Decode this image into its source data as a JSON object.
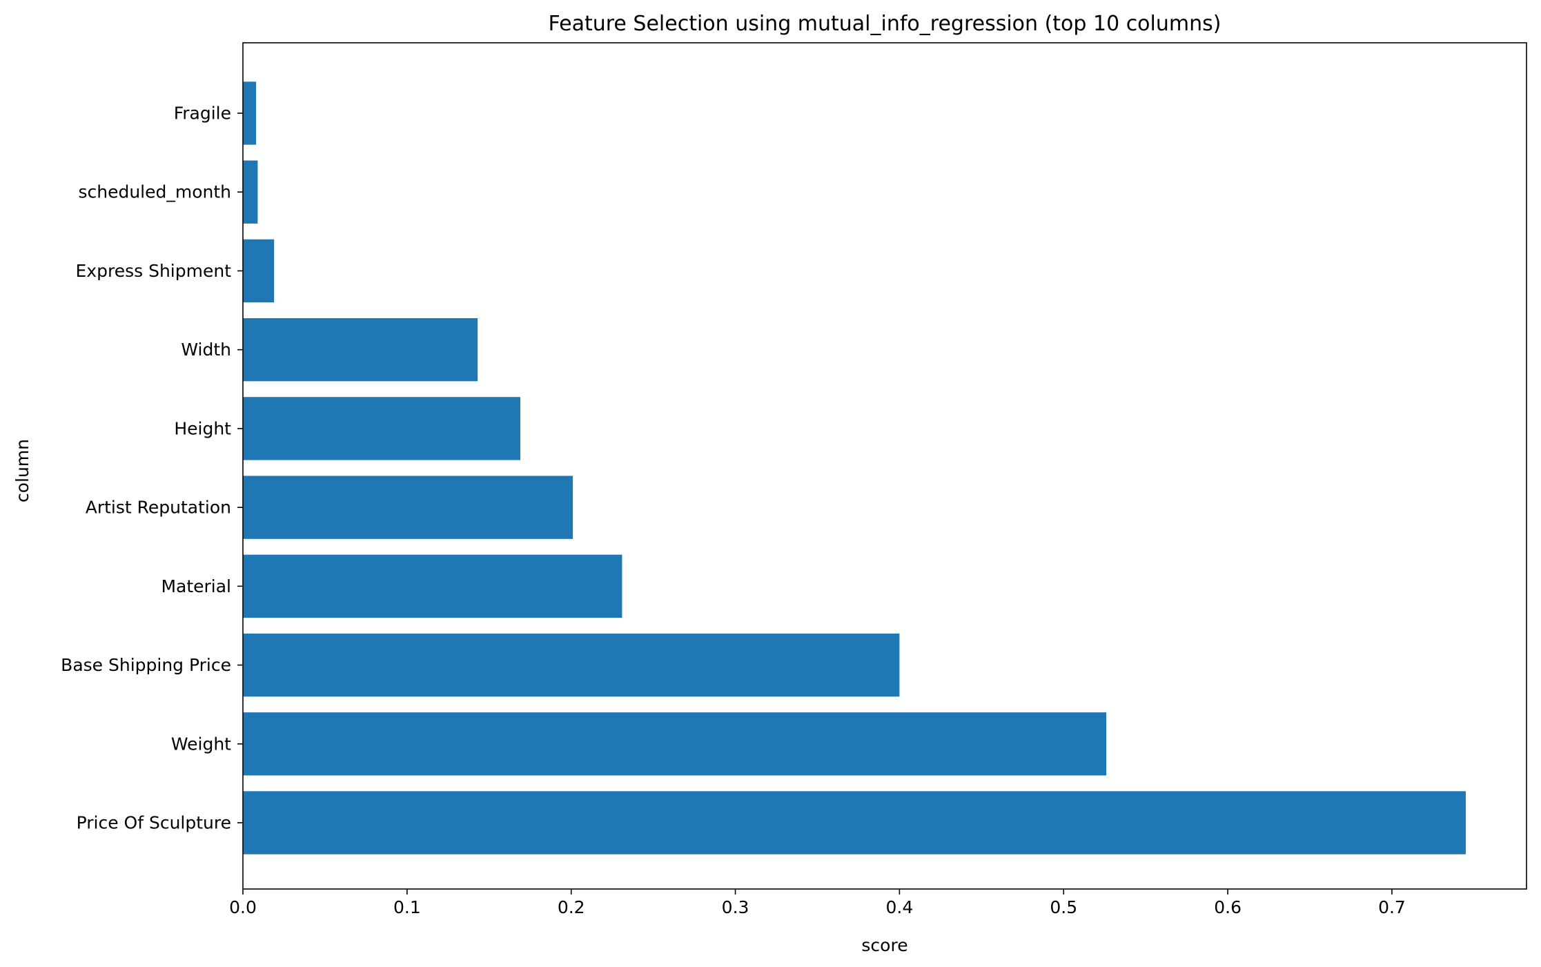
{
  "chart_data": {
    "type": "bar",
    "orientation": "horizontal",
    "title": "Feature Selection using mutual_info_regression (top 10 columns)",
    "xlabel": "score",
    "ylabel": "column",
    "categories": [
      "Price Of Sculpture",
      "Weight",
      "Base Shipping Price",
      "Material",
      "Artist Reputation",
      "Height",
      "Width",
      "Express Shipment",
      "scheduled_month",
      "Fragile"
    ],
    "values": [
      0.745,
      0.526,
      0.4,
      0.231,
      0.201,
      0.169,
      0.143,
      0.019,
      0.009,
      0.008
    ],
    "xlim": [
      0,
      0.782
    ],
    "xticks": [
      0.0,
      0.1,
      0.2,
      0.3,
      0.4,
      0.5,
      0.6,
      0.7
    ],
    "xtick_labels": [
      "0.0",
      "0.1",
      "0.2",
      "0.3",
      "0.4",
      "0.5",
      "0.6",
      "0.7"
    ],
    "grid": false,
    "bar_color": "#1f77b4"
  }
}
